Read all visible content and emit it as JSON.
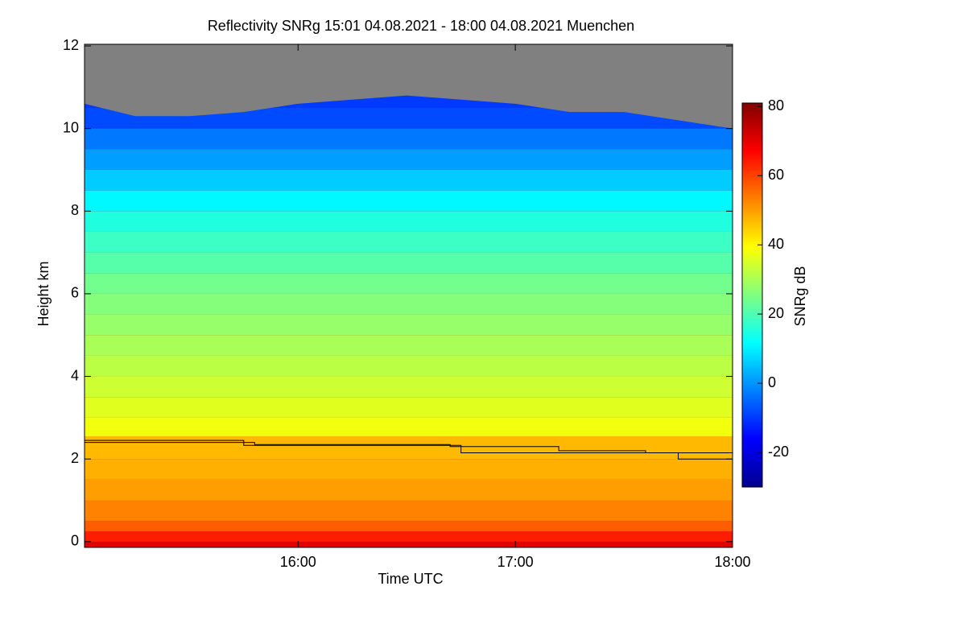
{
  "chart_data": {
    "type": "heatmap",
    "title": "Reflectivity SNRg   15:01 04.08.2021 - 18:00 04.08.2021 Muenchen",
    "x_label": "Time UTC",
    "y_label": "Height km",
    "colorbar_label": "SNRg dB",
    "xlim": [
      15.017,
      18.0
    ],
    "xticks": [
      {
        "value": 16,
        "label": "16:00"
      },
      {
        "value": 17,
        "label": "17:00"
      },
      {
        "value": 18,
        "label": "18:00"
      }
    ],
    "ylim": [
      -0.14,
      12.04
    ],
    "yticks": [
      0,
      2,
      4,
      6,
      8,
      10,
      12
    ],
    "zlim": [
      -30,
      81
    ],
    "zticks": [
      -20,
      0,
      20,
      40,
      60,
      80
    ],
    "colormap": [
      "#00008f",
      "#0000ff",
      "#0080ff",
      "#00ffff",
      "#80ff80",
      "#ffff00",
      "#ff8000",
      "#ff0000",
      "#800000"
    ],
    "height_edges": [
      0,
      0.25,
      0.5,
      1,
      1.5,
      2,
      2.55,
      3,
      3.5,
      4,
      4.5,
      5,
      5.5,
      6,
      6.5,
      7,
      7.5,
      8,
      8.5,
      9,
      9.5,
      10,
      10.5,
      11
    ],
    "snr": [
      64,
      57,
      53,
      50,
      48,
      47,
      38,
      36,
      34,
      32,
      30,
      28,
      26,
      24,
      21,
      18,
      15,
      11,
      6,
      1,
      -3,
      -8,
      -10
    ],
    "no_data_color": "#808080",
    "time": [
      15.017,
      15.25,
      15.5,
      15.75,
      16,
      16.25,
      16.5,
      16.75,
      17,
      17.25,
      17.5,
      17.75,
      18.0
    ],
    "cloud_top": [
      10.6,
      10.3,
      10.3,
      10.4,
      10.6,
      10.7,
      10.8,
      10.7,
      10.6,
      10.4,
      10.4,
      10.2,
      10.0
    ],
    "lines": [
      {
        "color": "#000000",
        "x": [
          15.017,
          15.75,
          15.75,
          16.75,
          16.75,
          17.75,
          17.75,
          18.0
        ],
        "values": [
          2.45,
          2.45,
          2.33,
          2.33,
          2.15,
          2.15,
          2.0,
          2.0
        ]
      },
      {
        "color": "#000000",
        "x": [
          15.017,
          15.8,
          15.8,
          16.7,
          16.7,
          17.2,
          17.2,
          17.6,
          17.6,
          18.0
        ],
        "values": [
          2.4,
          2.4,
          2.35,
          2.35,
          2.3,
          2.3,
          2.2,
          2.2,
          2.15,
          2.15
        ]
      }
    ]
  }
}
